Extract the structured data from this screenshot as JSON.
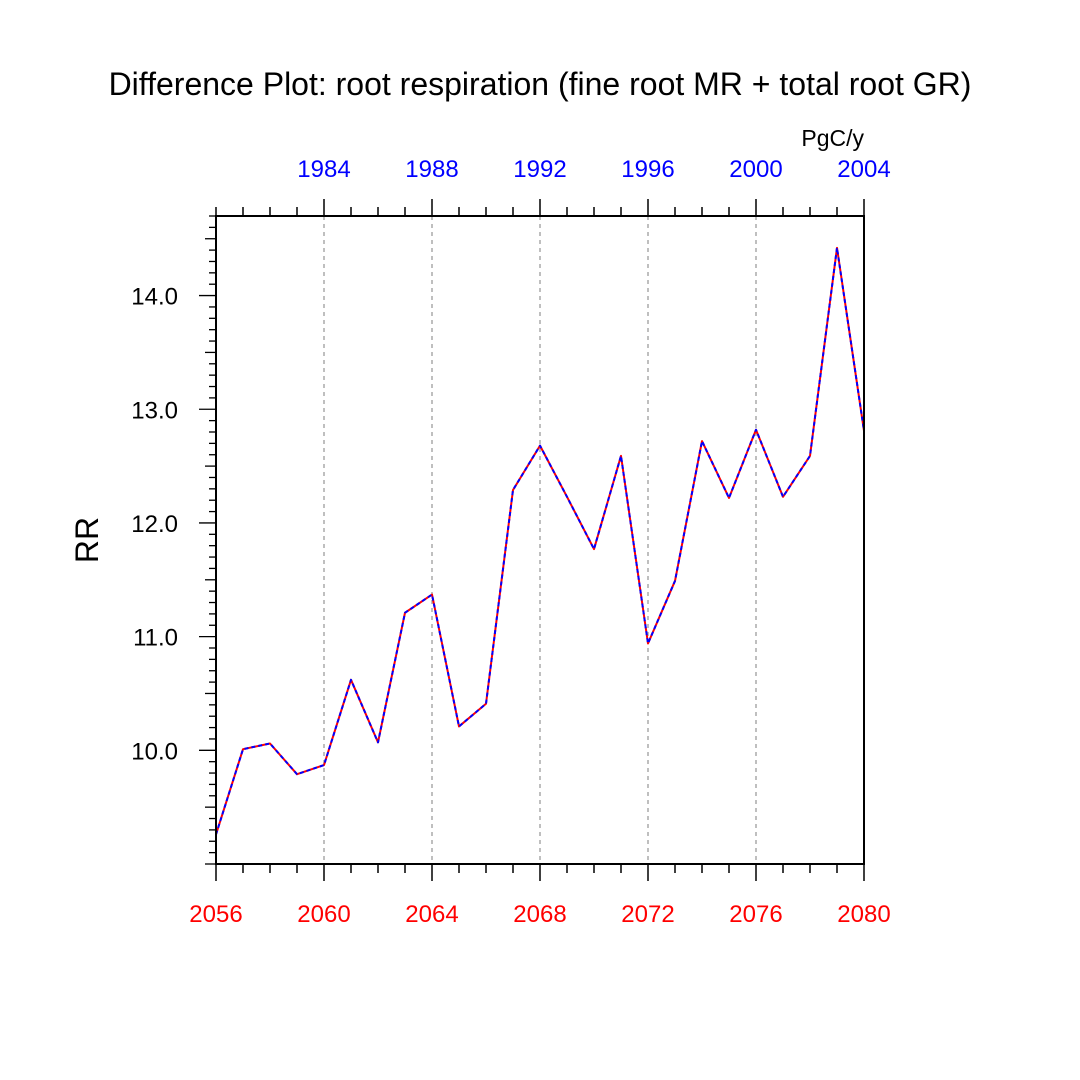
{
  "colors": {
    "bottom_axis": "#ff0000",
    "top_axis": "#0000ff",
    "series_a": "#ff0000",
    "series_b": "#0000ff",
    "grid": "#aaaaaa"
  },
  "chart_data": {
    "type": "line",
    "title": "Difference Plot: root respiration (fine root MR + total root GR)",
    "ylabel": "RR",
    "units": "PgC/y",
    "xlim": [
      2056,
      2080
    ],
    "ylim": [
      9.0,
      14.7
    ],
    "grid": "vertical dashed at major x ticks",
    "bottom_axis": {
      "ticks": [
        2056,
        2060,
        2064,
        2068,
        2072,
        2076,
        2080
      ],
      "labels": [
        "2056",
        "2060",
        "2064",
        "2068",
        "2072",
        "2076",
        "2080"
      ]
    },
    "top_axis": {
      "ticks": [
        1984,
        1988,
        1992,
        1996,
        2000,
        2004
      ],
      "labels": [
        "1984",
        "1988",
        "1992",
        "1996",
        "2000",
        "2004"
      ],
      "offset_years": 76
    },
    "y_ticks": [
      10.0,
      11.0,
      12.0,
      13.0,
      14.0
    ],
    "y_tick_labels": [
      "10.0",
      "11.0",
      "12.0",
      "13.0",
      "14.0"
    ],
    "x": [
      2056,
      2057,
      2058,
      2059,
      2060,
      2061,
      2062,
      2063,
      2064,
      2065,
      2066,
      2067,
      2068,
      2069,
      2070,
      2071,
      2072,
      2073,
      2074,
      2075,
      2076,
      2077,
      2078,
      2079,
      2080
    ],
    "series": [
      {
        "values": [
          9.26,
          10.01,
          10.06,
          9.79,
          9.87,
          10.62,
          10.07,
          11.21,
          11.37,
          10.21,
          10.41,
          12.29,
          12.68,
          12.23,
          11.77,
          12.59,
          10.94,
          11.49,
          12.72,
          12.22,
          12.82,
          12.23,
          12.59,
          14.42,
          12.81
        ]
      },
      {
        "values": [
          9.26,
          10.01,
          10.06,
          9.79,
          9.87,
          10.62,
          10.07,
          11.21,
          11.37,
          10.21,
          10.41,
          12.29,
          12.68,
          12.23,
          11.77,
          12.59,
          10.94,
          11.49,
          12.72,
          12.22,
          12.82,
          12.23,
          12.59,
          14.42,
          12.81
        ]
      }
    ]
  }
}
